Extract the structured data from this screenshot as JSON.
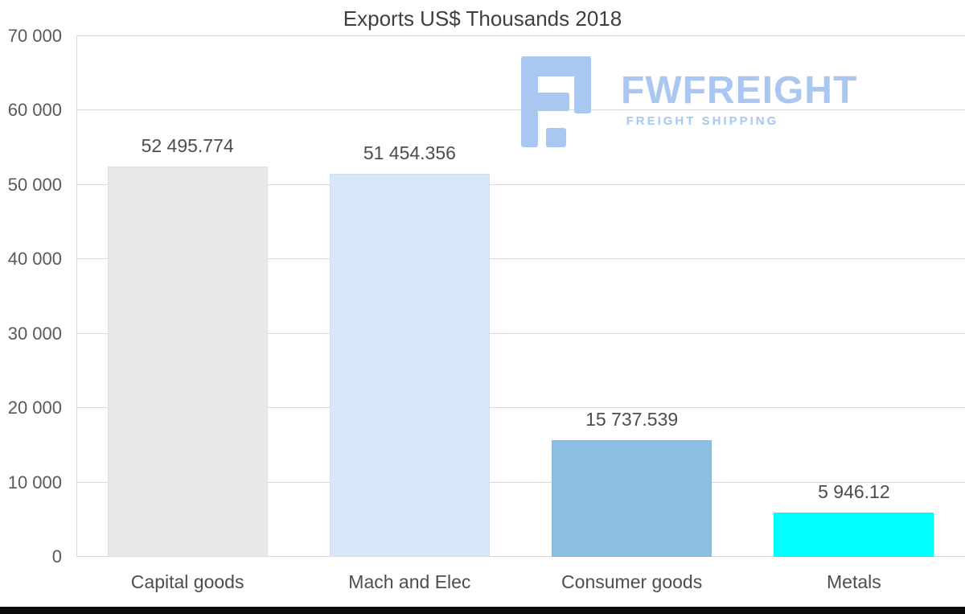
{
  "chart_data": {
    "type": "bar",
    "title": "Exports US$ Thousands 2018",
    "categories": [
      "Capital goods",
      "Mach and Elec",
      "Consumer goods",
      "Metals"
    ],
    "values": [
      52495.774,
      51454.356,
      15737.539,
      5946.12
    ],
    "value_labels": [
      "52 495.774",
      "51 454.356",
      "15 737.539",
      "5 946.12"
    ],
    "bar_colors": [
      "#e8e8e8",
      "#d9e8f8",
      "#8cbfe4",
      "#00ffff"
    ],
    "ylim": [
      0,
      70000
    ],
    "yticks": [
      {
        "value": 0,
        "label": "0"
      },
      {
        "value": 10000,
        "label": "10 000"
      },
      {
        "value": 20000,
        "label": "20 000"
      },
      {
        "value": 30000,
        "label": "30 000"
      },
      {
        "value": 40000,
        "label": "40 000"
      },
      {
        "value": 50000,
        "label": "50 000"
      },
      {
        "value": 60000,
        "label": "60 000"
      },
      {
        "value": 70000,
        "label": "70 000"
      }
    ],
    "grid": true,
    "legend": false,
    "xlabel": "",
    "ylabel": ""
  },
  "watermark": {
    "brand": "FWFREIGHT",
    "tagline": "FREIGHT SHIPPING",
    "color": "#a9c7f1"
  },
  "colors": {
    "gridline": "#d9d9d9",
    "title_text": "#3f3f3f",
    "axis_text": "#595959",
    "bottom_bar": "#0a0a0a"
  }
}
